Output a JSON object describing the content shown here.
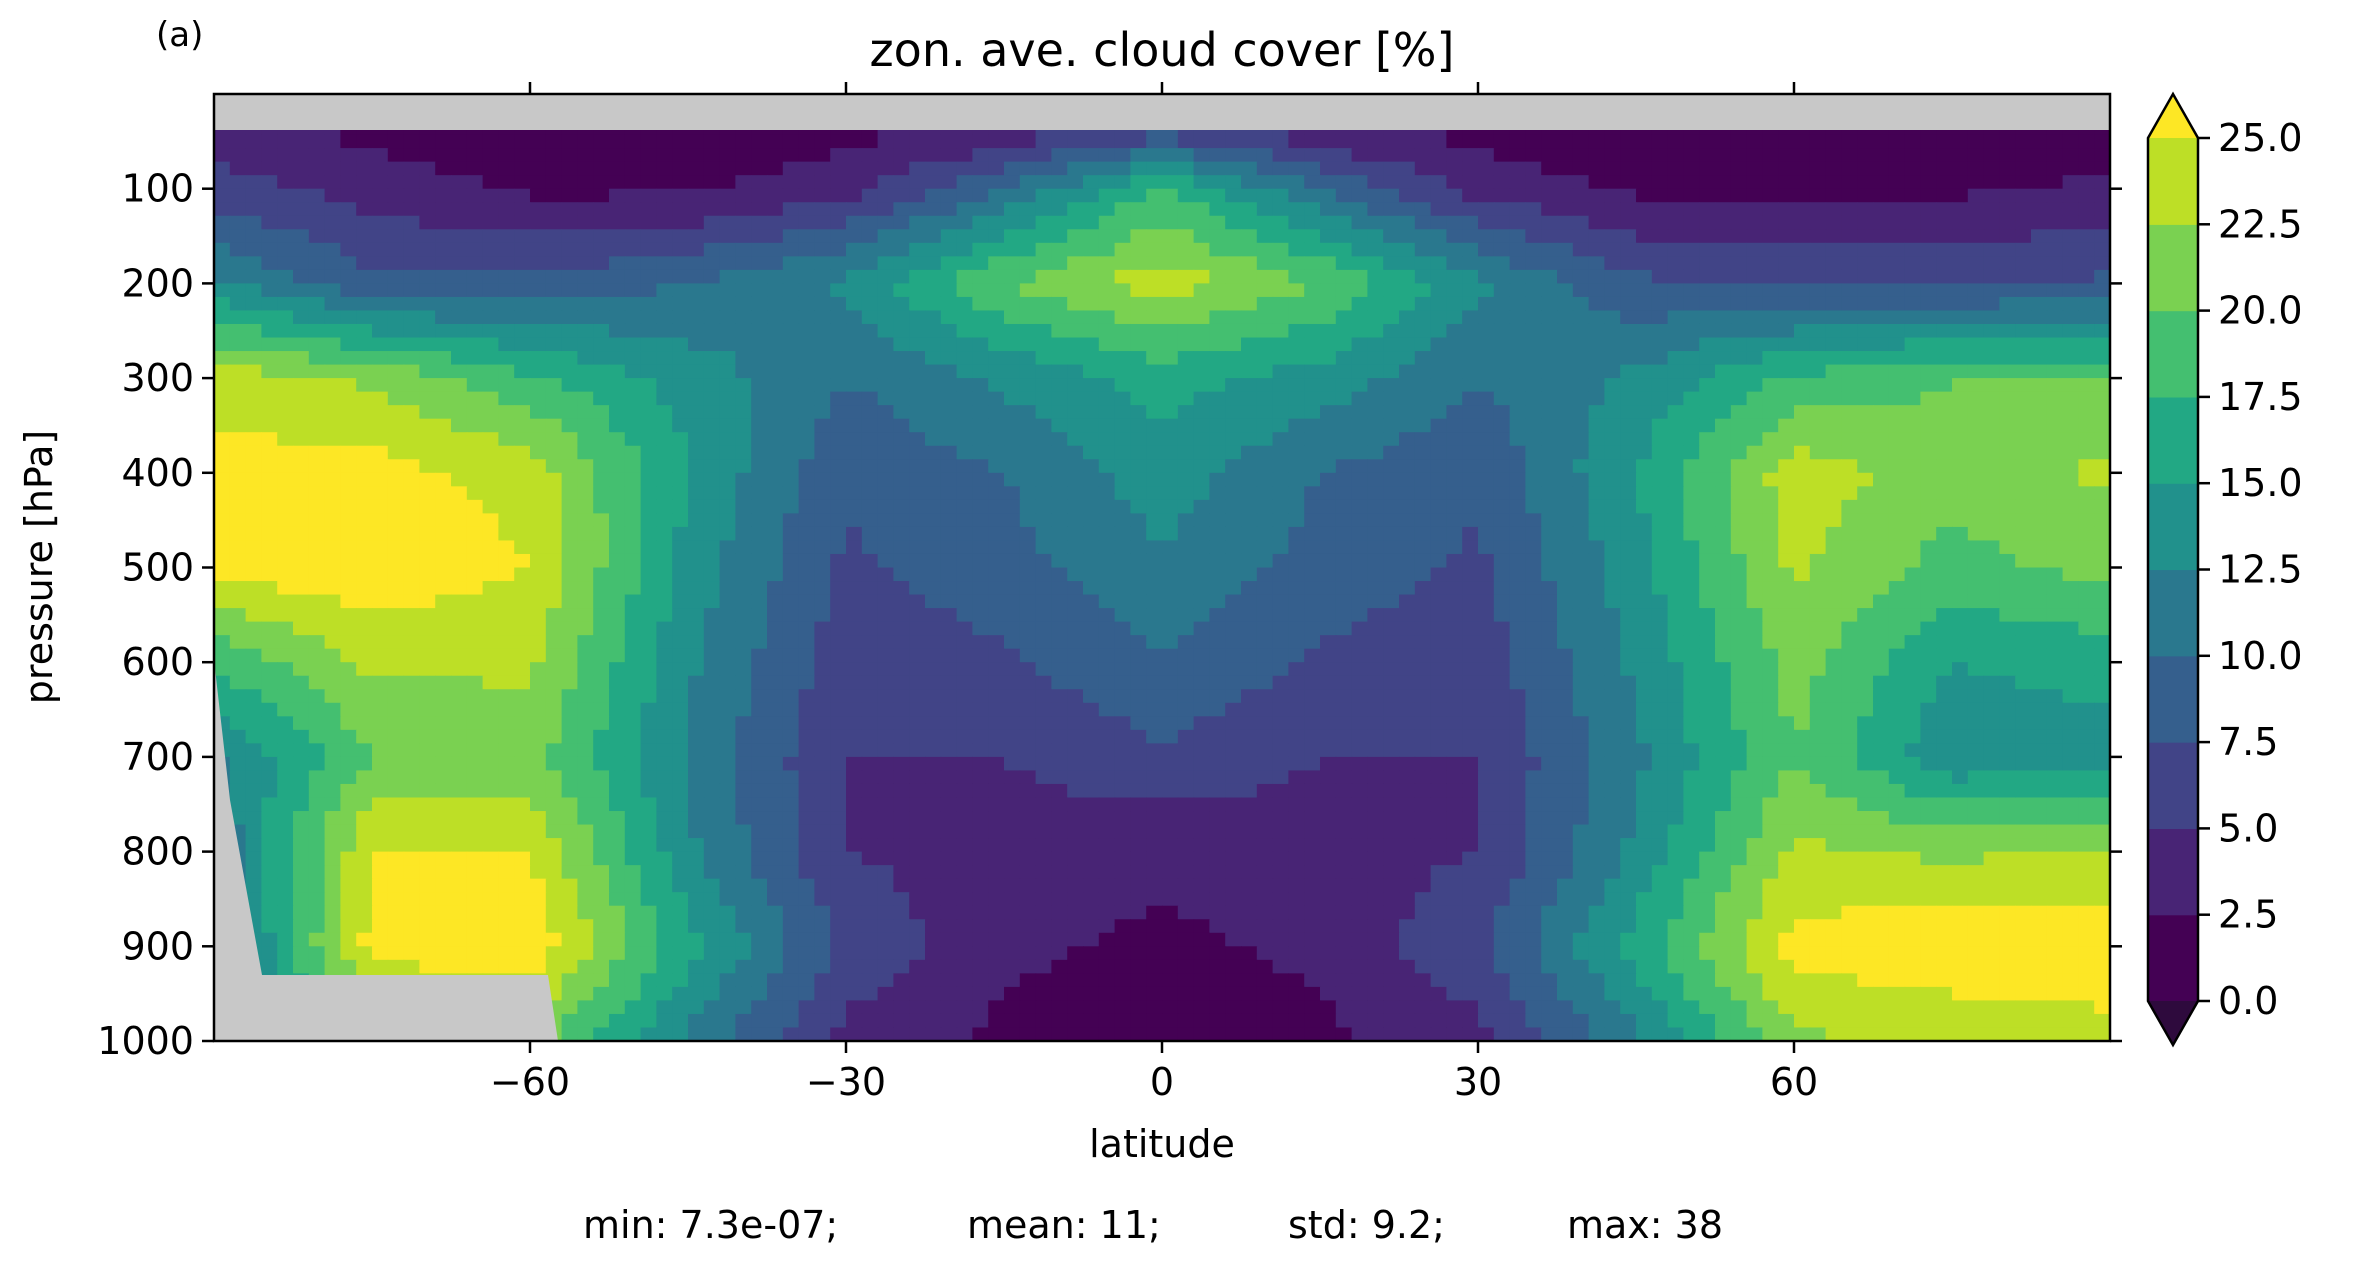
{
  "panel_label": "(a)",
  "stats_line": {
    "min": "min: 7.3e-07;",
    "mean": "mean: 11;",
    "std": "std: 9.2;",
    "max": "max: 38"
  },
  "colors": {
    "missing": "#c8c8c8",
    "levels": [
      "#440154",
      "#482475",
      "#414487",
      "#355f8d",
      "#2a788e",
      "#21918c",
      "#22a884",
      "#44bf70",
      "#7ad151",
      "#bddf26",
      "#fde725"
    ],
    "under": "#2e0a3d",
    "over": "#fde725"
  },
  "chart_data": {
    "type": "heatmap",
    "subtype": "filled-contour",
    "title": "zon. ave. cloud cover [%]",
    "xlabel": "latitude",
    "ylabel": "pressure [hPa]",
    "xlim": [
      -90,
      90
    ],
    "ylim": [
      1000,
      0
    ],
    "y_inverted": true,
    "xticks": [
      -60,
      -30,
      0,
      30,
      60
    ],
    "xtick_labels": [
      "−60",
      "−30",
      "0",
      "30",
      "60"
    ],
    "yticks": [
      100,
      200,
      300,
      400,
      500,
      600,
      700,
      800,
      900,
      1000
    ],
    "ytick_labels": [
      "100",
      "200",
      "300",
      "400",
      "500",
      "600",
      "700",
      "800",
      "900",
      "1000"
    ],
    "colorbar": {
      "levels": [
        0.0,
        2.5,
        5.0,
        7.5,
        10.0,
        12.5,
        15.0,
        17.5,
        20.0,
        22.5,
        25.0
      ],
      "tick_labels": [
        "0.0",
        "2.5",
        "5.0",
        "7.5",
        "10.0",
        "12.5",
        "15.0",
        "17.5",
        "20.0",
        "22.5",
        "25.0"
      ],
      "extend": "both"
    },
    "x": [
      -90,
      -75,
      -60,
      -45,
      -30,
      -15,
      0,
      15,
      30,
      45,
      60,
      75,
      90
    ],
    "y": [
      50,
      100,
      200,
      300,
      400,
      500,
      600,
      700,
      800,
      900,
      1000
    ],
    "z": [
      [
        4,
        2,
        1,
        1,
        2,
        4,
        8,
        4,
        2,
        1,
        1,
        1,
        1
      ],
      [
        6,
        4,
        2,
        2,
        4,
        10,
        18,
        10,
        4,
        2,
        2,
        2,
        3
      ],
      [
        13,
        8,
        8,
        10,
        13,
        20,
        24,
        20,
        13,
        8,
        7,
        7,
        8
      ],
      [
        24,
        22,
        18,
        14,
        10,
        13,
        16,
        14,
        10,
        13,
        18,
        20,
        20
      ],
      [
        26,
        26,
        24,
        15,
        8,
        10,
        14,
        10,
        8,
        15,
        24,
        21,
        23
      ],
      [
        26,
        27,
        25,
        14,
        7,
        9,
        12,
        9,
        7,
        14,
        23,
        19,
        21
      ],
      [
        18,
        23,
        23,
        13,
        6,
        7,
        10,
        7,
        6,
        13,
        21,
        15,
        16
      ],
      [
        12,
        20,
        21,
        12,
        5,
        5,
        7,
        5,
        5,
        12,
        20,
        13,
        14
      ],
      [
        10,
        25,
        25,
        13,
        5,
        4,
        3,
        4,
        5,
        13,
        23,
        22,
        23
      ],
      [
        9,
        26,
        27,
        16,
        7,
        3,
        2,
        3,
        7,
        16,
        26,
        27,
        27
      ],
      [
        8,
        20,
        21,
        12,
        4,
        2,
        1,
        2,
        4,
        12,
        22,
        23,
        24
      ]
    ],
    "units": "%"
  }
}
